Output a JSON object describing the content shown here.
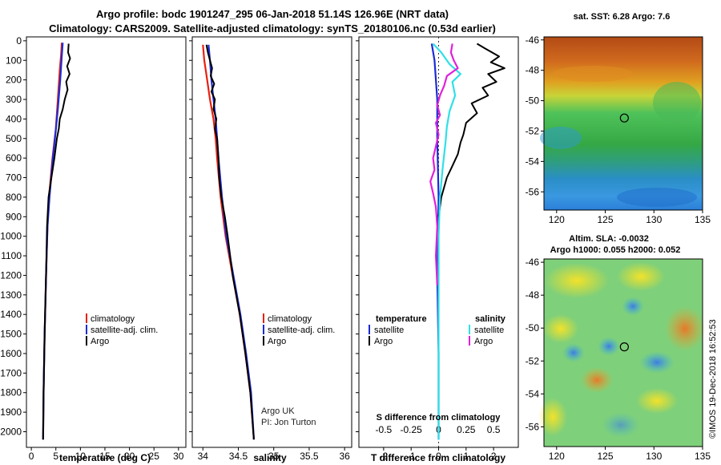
{
  "title": {
    "line1": "Argo profile: bodc 1901247_295 06-Jan-2018 51.14S 126.96E (NRT data)",
    "line2": "Climatology: CARS2009. Satellite-adjusted climatology: synTS_20180106.nc (0.53d earlier)"
  },
  "depth_ticks": [
    "0",
    "100",
    "200",
    "300",
    "400",
    "500",
    "600",
    "700",
    "800",
    "900",
    "1000",
    "1100",
    "1200",
    "1300",
    "1400",
    "1500",
    "1600",
    "1700",
    "1800",
    "1900",
    "2000"
  ],
  "colors": {
    "climatology": "#e8200f",
    "satellite": "#1b2bd6",
    "argo": "#000000",
    "sat_salinity": "#2fe0e6",
    "argo_salinity": "#e020d8"
  },
  "chart_data": [
    {
      "type": "line",
      "id": "temperature",
      "xlabel": "temperature (deg C)",
      "xlim": [
        -1,
        31.5
      ],
      "ylim": [
        2080,
        -20
      ],
      "x_ticks": [
        "0",
        "5",
        "10",
        "15",
        "20",
        "25",
        "30"
      ],
      "legend": [
        "climatology",
        "satellite-adj. clim.",
        "Argo"
      ],
      "series": [
        {
          "name": "climatology",
          "color": "#e8200f",
          "points": [
            [
              6.2,
              10
            ],
            [
              6.1,
              60
            ],
            [
              5.8,
              150
            ],
            [
              5.4,
              300
            ],
            [
              5.0,
              450
            ],
            [
              4.3,
              600
            ],
            [
              3.6,
              800
            ],
            [
              3.3,
              950
            ],
            [
              3.0,
              1200
            ],
            [
              2.7,
              1500
            ],
            [
              2.5,
              1800
            ],
            [
              2.4,
              2040
            ]
          ]
        },
        {
          "name": "satellite-adj. clim.",
          "color": "#1b2bd6",
          "points": [
            [
              6.4,
              10
            ],
            [
              6.2,
              80
            ],
            [
              5.9,
              200
            ],
            [
              5.4,
              350
            ],
            [
              4.9,
              480
            ],
            [
              4.3,
              620
            ],
            [
              3.7,
              800
            ],
            [
              3.3,
              950
            ],
            [
              3.0,
              1200
            ],
            [
              2.7,
              1500
            ],
            [
              2.5,
              1800
            ],
            [
              2.4,
              2040
            ]
          ]
        },
        {
          "name": "Argo",
          "color": "#000000",
          "points": [
            [
              7.6,
              15
            ],
            [
              7.5,
              60
            ],
            [
              7.9,
              90
            ],
            [
              7.3,
              130
            ],
            [
              7.8,
              170
            ],
            [
              7.1,
              210
            ],
            [
              7.4,
              250
            ],
            [
              6.8,
              300
            ],
            [
              6.4,
              350
            ],
            [
              5.8,
              400
            ],
            [
              5.6,
              450
            ],
            [
              5.2,
              500
            ],
            [
              4.7,
              600
            ],
            [
              4.1,
              700
            ],
            [
              3.5,
              800
            ],
            [
              3.2,
              950
            ],
            [
              3.0,
              1200
            ],
            [
              2.7,
              1500
            ],
            [
              2.5,
              1800
            ],
            [
              2.4,
              2040
            ]
          ]
        }
      ]
    },
    {
      "type": "line",
      "id": "salinity",
      "xlabel": "salinity",
      "xlim": [
        33.85,
        36.1
      ],
      "ylim": [
        2080,
        -20
      ],
      "x_ticks": [
        "34",
        "34.5",
        "35",
        "35.5",
        "36"
      ],
      "legend": [
        "climatology",
        "satellite-adj. clim.",
        "Argo"
      ],
      "annotations": [
        "Argo UK",
        "PI: Jon Turton"
      ],
      "series": [
        {
          "name": "climatology",
          "color": "#e8200f",
          "points": [
            [
              34.0,
              20
            ],
            [
              34.02,
              100
            ],
            [
              34.06,
              200
            ],
            [
              34.1,
              300
            ],
            [
              34.15,
              400
            ],
            [
              34.18,
              500
            ],
            [
              34.2,
              600
            ],
            [
              34.25,
              800
            ],
            [
              34.32,
              1000
            ],
            [
              34.42,
              1200
            ],
            [
              34.52,
              1400
            ],
            [
              34.6,
              1600
            ],
            [
              34.67,
              1800
            ],
            [
              34.72,
              2040
            ]
          ]
        },
        {
          "name": "satellite-adj. clim.",
          "color": "#1b2bd6",
          "points": [
            [
              34.08,
              20
            ],
            [
              34.1,
              100
            ],
            [
              34.12,
              200
            ],
            [
              34.15,
              300
            ],
            [
              34.18,
              400
            ],
            [
              34.2,
              500
            ],
            [
              34.22,
              600
            ],
            [
              34.27,
              800
            ],
            [
              34.33,
              1000
            ],
            [
              34.43,
              1200
            ],
            [
              34.53,
              1400
            ],
            [
              34.61,
              1600
            ],
            [
              34.68,
              1800
            ],
            [
              34.72,
              2040
            ]
          ]
        },
        {
          "name": "Argo",
          "color": "#000000",
          "points": [
            [
              34.05,
              20
            ],
            [
              34.07,
              60
            ],
            [
              34.1,
              100
            ],
            [
              34.13,
              140
            ],
            [
              34.11,
              180
            ],
            [
              34.16,
              220
            ],
            [
              34.12,
              260
            ],
            [
              34.17,
              300
            ],
            [
              34.15,
              350
            ],
            [
              34.19,
              400
            ],
            [
              34.17,
              450
            ],
            [
              34.2,
              500
            ],
            [
              34.22,
              600
            ],
            [
              34.23,
              700
            ],
            [
              34.26,
              800
            ],
            [
              34.31,
              900
            ],
            [
              34.35,
              1000
            ],
            [
              34.42,
              1200
            ],
            [
              34.52,
              1400
            ],
            [
              34.6,
              1600
            ],
            [
              34.67,
              1800
            ],
            [
              34.72,
              2040
            ]
          ]
        }
      ]
    },
    {
      "type": "line",
      "id": "difference",
      "xlabel": "T difference from climatology",
      "xlabel2": "S difference from climatology",
      "xlim": [
        -2.9,
        2.9
      ],
      "ylim": [
        2080,
        -20
      ],
      "x_ticks": [
        "-2",
        "-1",
        "0",
        "1",
        "2"
      ],
      "x_ticks2": [
        "-0.5",
        "-0.25",
        "0",
        "0.25",
        "0.5"
      ],
      "legend_left": [
        "temperature",
        "satellite",
        "Argo"
      ],
      "legend_right": [
        "salinity",
        "satellite",
        "Argo"
      ],
      "series": [
        {
          "name": "satellite",
          "color": "#1b2bd6",
          "points": [
            [
              -0.25,
              15
            ],
            [
              -0.15,
              100
            ],
            [
              -0.05,
              300
            ],
            [
              -0.05,
              500
            ],
            [
              0.0,
              800
            ],
            [
              -0.05,
              1200
            ],
            [
              0.0,
              1600
            ],
            [
              0.0,
              2040
            ]
          ]
        },
        {
          "name": "Argo",
          "color": "#000000",
          "points": [
            [
              1.4,
              15
            ],
            [
              1.7,
              40
            ],
            [
              2.2,
              80
            ],
            [
              1.9,
              110
            ],
            [
              2.4,
              140
            ],
            [
              1.8,
              170
            ],
            [
              2.1,
              210
            ],
            [
              1.6,
              240
            ],
            [
              1.8,
              280
            ],
            [
              1.2,
              320
            ],
            [
              1.4,
              370
            ],
            [
              1.0,
              420
            ],
            [
              0.9,
              480
            ],
            [
              0.8,
              520
            ],
            [
              0.7,
              580
            ],
            [
              0.5,
              640
            ],
            [
              0.3,
              700
            ],
            [
              0.1,
              800
            ],
            [
              0.0,
              900
            ]
          ]
        },
        {
          "name": "satellite",
          "color": "#2fe0e6",
          "points": [
            [
              -0.2,
              15
            ],
            [
              0.1,
              60
            ],
            [
              0.4,
              120
            ],
            [
              0.8,
              170
            ],
            [
              0.5,
              210
            ],
            [
              0.6,
              280
            ],
            [
              0.4,
              360
            ],
            [
              0.3,
              440
            ],
            [
              0.25,
              520
            ],
            [
              0.15,
              650
            ],
            [
              0.05,
              800
            ],
            [
              0.0,
              1000
            ],
            [
              0.0,
              1400
            ],
            [
              0.0,
              2040
            ]
          ]
        },
        {
          "name": "Argo",
          "color": "#e020d8",
          "points": [
            [
              0.5,
              15
            ],
            [
              0.45,
              60
            ],
            [
              0.55,
              100
            ],
            [
              0.7,
              140
            ],
            [
              0.3,
              180
            ],
            [
              0.2,
              230
            ],
            [
              0.05,
              280
            ],
            [
              -0.05,
              330
            ],
            [
              0.05,
              380
            ],
            [
              -0.1,
              420
            ],
            [
              0.0,
              480
            ],
            [
              -0.1,
              540
            ],
            [
              -0.2,
              600
            ],
            [
              -0.15,
              660
            ],
            [
              -0.3,
              720
            ],
            [
              -0.2,
              780
            ],
            [
              -0.1,
              850
            ],
            [
              -0.05,
              950
            ],
            [
              -0.1,
              1100
            ],
            [
              -0.05,
              1250
            ]
          ]
        }
      ]
    },
    {
      "type": "heatmap",
      "id": "sst_map",
      "title": "sat. SST: 6.28 Argo: 7.6",
      "x_ticks": [
        "120",
        "125",
        "130",
        "135"
      ],
      "y_ticks": [
        "-46",
        "-48",
        "-50",
        "-52",
        "-54",
        "-56"
      ],
      "xlim": [
        118.7,
        135
      ],
      "ylim": [
        -57.2,
        -45.8
      ],
      "marker": {
        "lon": 126.96,
        "lat": -51.14
      }
    },
    {
      "type": "heatmap",
      "id": "sla_map",
      "title": "Altim. SLA: -0.0032",
      "subtitle": "Argo h1000: 0.055 h2000: 0.052",
      "x_ticks": [
        "120",
        "125",
        "130",
        "135"
      ],
      "y_ticks": [
        "-46",
        "-48",
        "-50",
        "-52",
        "-54",
        "-56"
      ],
      "xlim": [
        118.7,
        135
      ],
      "ylim": [
        -57.2,
        -45.8
      ],
      "marker": {
        "lon": 126.96,
        "lat": -51.14
      }
    }
  ],
  "side_stamp": "©IMOS 19-Dec-2018 16:52:53"
}
